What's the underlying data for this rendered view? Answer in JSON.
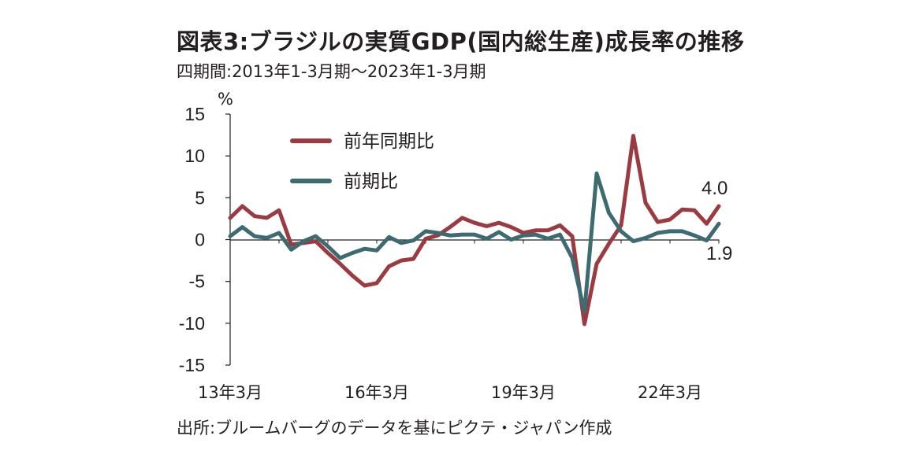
{
  "title": "図表3:ブラジルの実質GDP(国内総生産)成長率の推移",
  "subtitle": "四期間:2013年1-3月期〜2023年1-3月期",
  "source": "出所:ブルームバーグのデータを基にピクテ・ジャパン作成",
  "colors": {
    "yoy": "#9b3a40",
    "qoq": "#3d6b72",
    "axis": "#231f20",
    "grid": "#bfbfbf"
  },
  "chart_data": {
    "type": "line",
    "ylabel": "%",
    "ylim": [
      -15,
      15
    ],
    "yticks": [
      "15",
      "10",
      "5",
      "0",
      "-5",
      "-10",
      "-15"
    ],
    "ytick_values": [
      15,
      10,
      5,
      0,
      -5,
      -10,
      -15
    ],
    "xtick_labels": [
      "13年3月",
      "16年3月",
      "19年3月",
      "22年3月"
    ],
    "xtick_index": [
      0,
      12,
      24,
      36
    ],
    "x": [
      "13年3月",
      "13年6月",
      "13年9月",
      "13年12月",
      "14年3月",
      "14年6月",
      "14年9月",
      "14年12月",
      "15年3月",
      "15年6月",
      "15年9月",
      "15年12月",
      "16年3月",
      "16年6月",
      "16年9月",
      "16年12月",
      "17年3月",
      "17年6月",
      "17年9月",
      "17年12月",
      "18年3月",
      "18年6月",
      "18年9月",
      "18年12月",
      "19年3月",
      "19年6月",
      "19年9月",
      "19年12月",
      "20年3月",
      "20年6月",
      "20年9月",
      "20年12月",
      "21年3月",
      "21年6月",
      "21年9月",
      "21年12月",
      "22年3月",
      "22年6月",
      "22年9月",
      "22年12月",
      "23年3月"
    ],
    "series": [
      {
        "name": "前年同期比",
        "values": [
          2.6,
          4.0,
          2.8,
          2.6,
          3.5,
          -0.6,
          -0.4,
          -0.2,
          -1.6,
          -2.9,
          -4.3,
          -5.5,
          -5.2,
          -3.2,
          -2.5,
          -2.3,
          0.1,
          0.5,
          1.5,
          2.6,
          2.0,
          1.6,
          2.0,
          1.5,
          0.8,
          1.1,
          1.1,
          1.7,
          0.4,
          -10.1,
          -2.9,
          -0.5,
          1.7,
          12.4,
          4.4,
          2.1,
          2.4,
          3.6,
          3.5,
          1.9,
          4.0
        ]
      },
      {
        "name": "前期比",
        "values": [
          0.4,
          1.5,
          0.4,
          0.2,
          0.8,
          -1.2,
          -0.2,
          0.4,
          -0.8,
          -2.2,
          -1.6,
          -1.1,
          -1.3,
          0.3,
          -0.4,
          -0.1,
          1.0,
          0.8,
          0.5,
          0.6,
          0.6,
          0.1,
          0.9,
          0.0,
          0.5,
          0.6,
          0.1,
          0.6,
          -2.2,
          -8.6,
          7.9,
          3.2,
          1.0,
          -0.2,
          0.2,
          0.8,
          1.0,
          1.0,
          0.5,
          -0.1,
          1.9
        ]
      }
    ],
    "annotations": {
      "last_yoy": "4.0",
      "last_qoq": "1.9"
    },
    "legend_position": "top-left",
    "grid": false
  }
}
